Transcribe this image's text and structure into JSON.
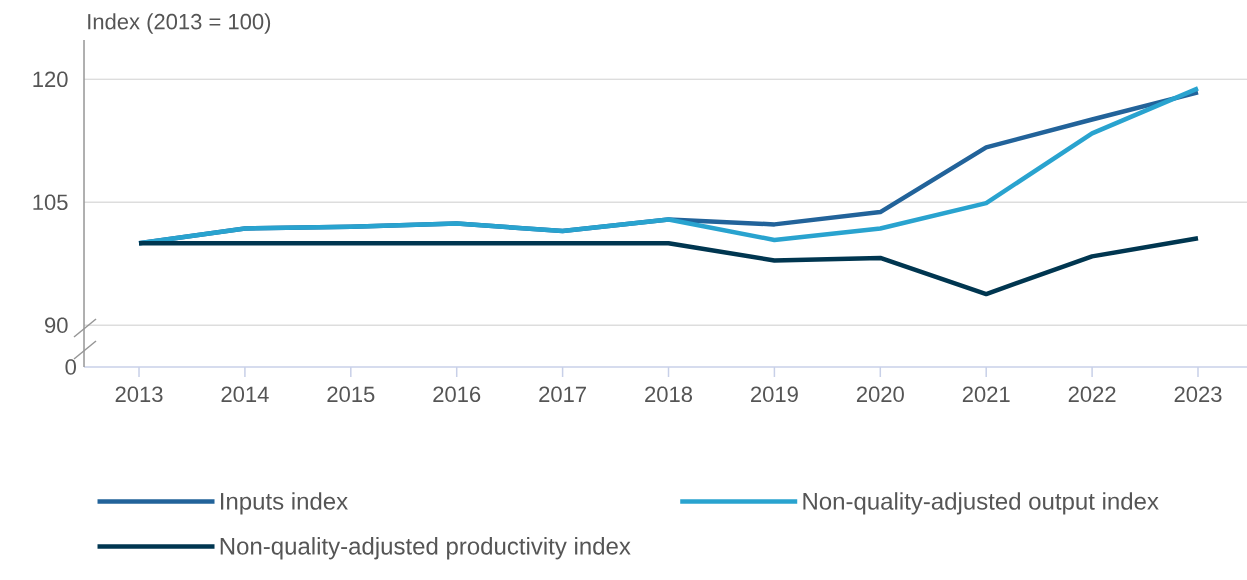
{
  "chart_data": {
    "type": "line",
    "ylabel": "Index (2013 = 100)",
    "categories": [
      "2013",
      "2014",
      "2015",
      "2016",
      "2017",
      "2018",
      "2019",
      "2020",
      "2021",
      "2022",
      "2023"
    ],
    "series": [
      {
        "name": "Inputs index",
        "color": "#22639a",
        "values": [
          100,
          101.8,
          102.0,
          102.4,
          101.5,
          102.9,
          102.3,
          103.8,
          111.7,
          115.1,
          118.4
        ]
      },
      {
        "name": "Non-quality-adjusted output index",
        "color": "#29a3cf",
        "values": [
          100,
          101.8,
          102.0,
          102.4,
          101.5,
          102.9,
          100.4,
          101.8,
          104.9,
          113.4,
          118.9
        ]
      },
      {
        "name": "Non-quality-adjusted productivity index",
        "color": "#003650",
        "values": [
          100,
          100,
          100,
          100,
          100,
          100,
          97.9,
          98.2,
          93.8,
          98.4,
          100.6
        ]
      }
    ],
    "ylim": [
      84.9,
      124.8
    ],
    "yticks": [
      90,
      105,
      120
    ],
    "grid": "y",
    "legend": "bottom",
    "annotations": [
      "0"
    ]
  }
}
